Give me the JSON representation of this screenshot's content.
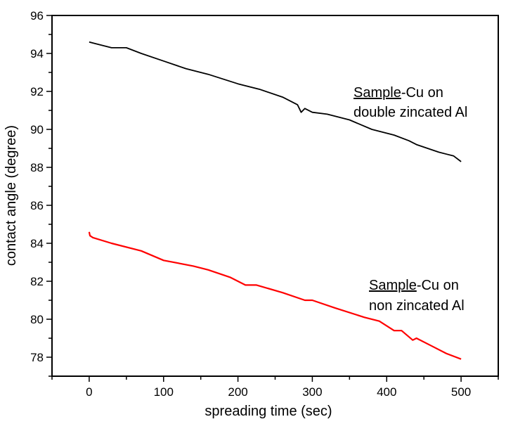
{
  "chart_data": {
    "type": "line",
    "title": "",
    "xlabel": "spreading time (sec)",
    "ylabel": "contact angle (degree)",
    "xlim": [
      -50,
      550
    ],
    "ylim": [
      77,
      96
    ],
    "xticks": [
      0,
      100,
      200,
      300,
      400,
      500
    ],
    "yticks": [
      78,
      80,
      82,
      84,
      86,
      88,
      90,
      92,
      94,
      96
    ],
    "grid": false,
    "series": [
      {
        "name": "Sample-Cu on double zincated Al",
        "color": "#000000",
        "x": [
          0,
          10,
          30,
          50,
          70,
          100,
          130,
          160,
          200,
          230,
          260,
          280,
          285,
          290,
          300,
          320,
          350,
          380,
          410,
          430,
          440,
          470,
          490,
          500
        ],
        "y": [
          94.6,
          94.5,
          94.3,
          94.3,
          94.0,
          93.6,
          93.2,
          92.9,
          92.4,
          92.1,
          91.7,
          91.3,
          90.9,
          91.1,
          90.9,
          90.8,
          90.5,
          90.0,
          89.7,
          89.4,
          89.2,
          88.8,
          88.6,
          88.3
        ],
        "annotation": {
          "underlined": "Sample",
          "rest": "-Cu on",
          "line2": "double zincated Al"
        }
      },
      {
        "name": "Sample-Cu on non zincated Al",
        "color": "#ff0000",
        "x": [
          0,
          1,
          5,
          30,
          70,
          100,
          140,
          160,
          190,
          210,
          225,
          260,
          290,
          300,
          330,
          370,
          390,
          410,
          420,
          435,
          440,
          460,
          480,
          500
        ],
        "y": [
          84.6,
          84.4,
          84.3,
          84.0,
          83.6,
          83.1,
          82.8,
          82.6,
          82.2,
          81.8,
          81.8,
          81.4,
          81.0,
          81.0,
          80.6,
          80.1,
          79.9,
          79.4,
          79.4,
          78.9,
          79.0,
          78.6,
          78.2,
          77.9
        ],
        "annotation": {
          "underlined": "Sample",
          "rest": "-Cu on",
          "line2": "non zincated Al"
        }
      }
    ]
  }
}
